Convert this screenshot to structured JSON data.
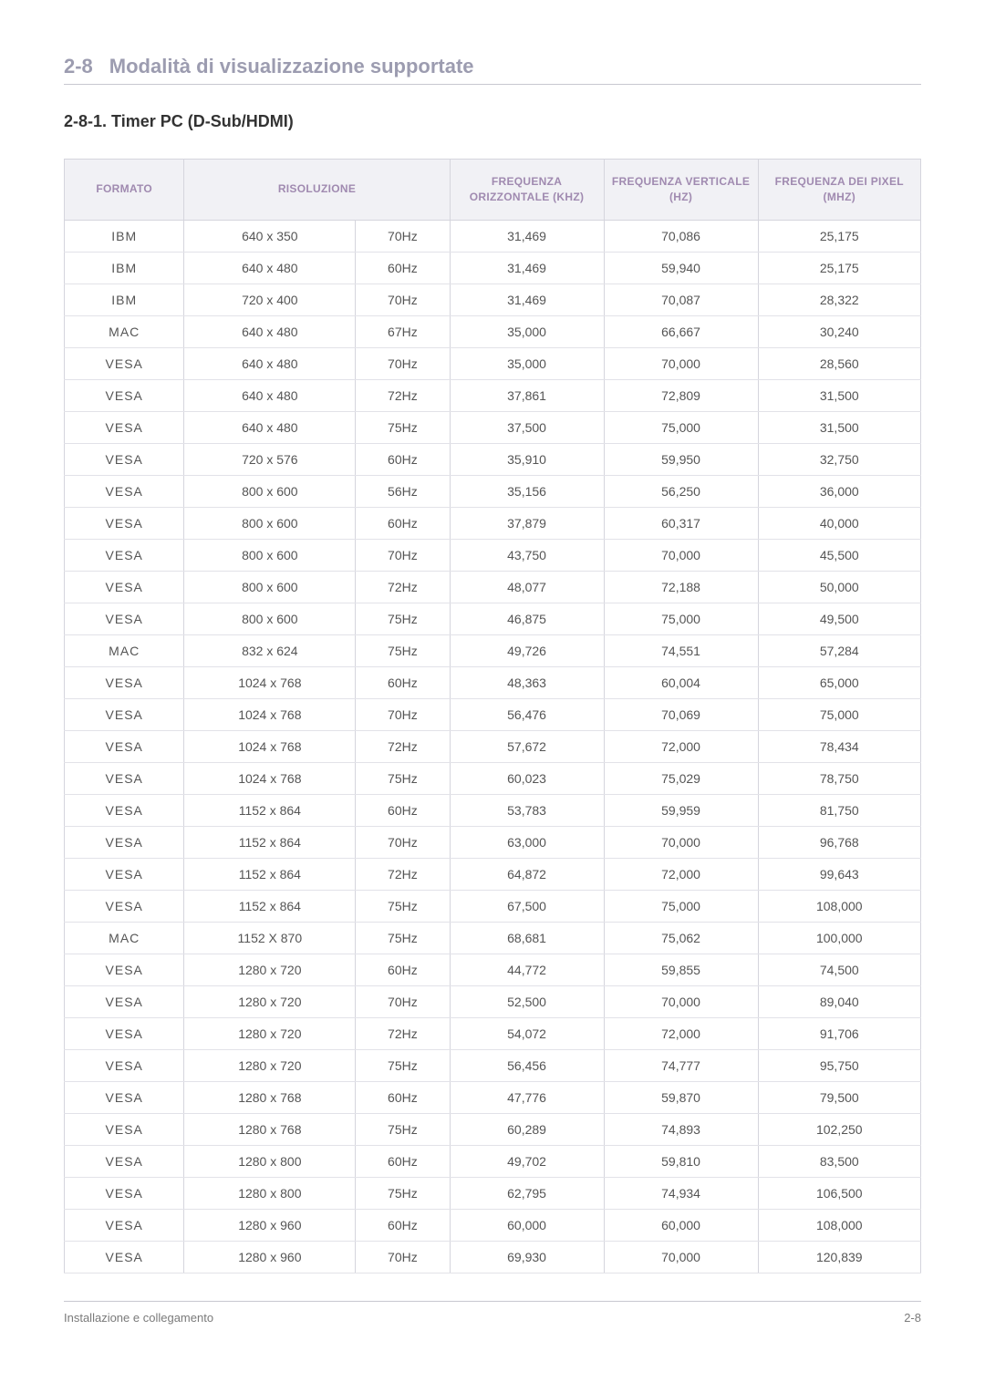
{
  "section": {
    "number": "2-8",
    "title": "Modalità di visualizzazione supportate"
  },
  "subsection": "2-8-1. Timer PC (D-Sub/HDMI)",
  "table": {
    "headers": {
      "formato": "Formato",
      "risoluzione": "Risoluzione",
      "freq_h": "Frequenza Orizzontale (KHz)",
      "freq_v": "Frequenza Verticale (Hz)",
      "freq_p": "Frequenza dei pixel (MHz)"
    },
    "header_color": "#a08ab0",
    "header_bg": "#f1f1f5",
    "border_color": "#d5d5dd",
    "rows": [
      {
        "fmt": "IBM",
        "res": "640 x 350",
        "hz": "70Hz",
        "fh": "31,469",
        "fv": "70,086",
        "fp": "25,175"
      },
      {
        "fmt": "IBM",
        "res": "640 x 480",
        "hz": "60Hz",
        "fh": "31,469",
        "fv": "59,940",
        "fp": "25,175"
      },
      {
        "fmt": "IBM",
        "res": "720 x 400",
        "hz": "70Hz",
        "fh": "31,469",
        "fv": "70,087",
        "fp": "28,322"
      },
      {
        "fmt": "MAC",
        "res": "640 x 480",
        "hz": "67Hz",
        "fh": "35,000",
        "fv": "66,667",
        "fp": "30,240"
      },
      {
        "fmt": "VESA",
        "res": "640 x 480",
        "hz": "70Hz",
        "fh": "35,000",
        "fv": "70,000",
        "fp": "28,560"
      },
      {
        "fmt": "VESA",
        "res": "640 x 480",
        "hz": "72Hz",
        "fh": "37,861",
        "fv": "72,809",
        "fp": "31,500"
      },
      {
        "fmt": "VESA",
        "res": "640 x 480",
        "hz": "75Hz",
        "fh": "37,500",
        "fv": "75,000",
        "fp": "31,500"
      },
      {
        "fmt": "VESA",
        "res": "720 x 576",
        "hz": "60Hz",
        "fh": "35,910",
        "fv": "59,950",
        "fp": "32,750"
      },
      {
        "fmt": "VESA",
        "res": "800 x 600",
        "hz": "56Hz",
        "fh": "35,156",
        "fv": "56,250",
        "fp": "36,000"
      },
      {
        "fmt": "VESA",
        "res": "800 x 600",
        "hz": "60Hz",
        "fh": "37,879",
        "fv": "60,317",
        "fp": "40,000"
      },
      {
        "fmt": "VESA",
        "res": "800 x 600",
        "hz": "70Hz",
        "fh": "43,750",
        "fv": "70,000",
        "fp": "45,500"
      },
      {
        "fmt": "VESA",
        "res": "800 x 600",
        "hz": "72Hz",
        "fh": "48,077",
        "fv": "72,188",
        "fp": "50,000"
      },
      {
        "fmt": "VESA",
        "res": "800 x 600",
        "hz": "75Hz",
        "fh": "46,875",
        "fv": "75,000",
        "fp": "49,500"
      },
      {
        "fmt": "MAC",
        "res": "832 x 624",
        "hz": "75Hz",
        "fh": "49,726",
        "fv": "74,551",
        "fp": "57,284"
      },
      {
        "fmt": "VESA",
        "res": "1024 x 768",
        "hz": "60Hz",
        "fh": "48,363",
        "fv": "60,004",
        "fp": "65,000"
      },
      {
        "fmt": "VESA",
        "res": "1024 x 768",
        "hz": "70Hz",
        "fh": "56,476",
        "fv": "70,069",
        "fp": "75,000"
      },
      {
        "fmt": "VESA",
        "res": "1024 x 768",
        "hz": "72Hz",
        "fh": "57,672",
        "fv": "72,000",
        "fp": "78,434"
      },
      {
        "fmt": "VESA",
        "res": "1024 x 768",
        "hz": "75Hz",
        "fh": "60,023",
        "fv": "75,029",
        "fp": "78,750"
      },
      {
        "fmt": "VESA",
        "res": "1152 x 864",
        "hz": "60Hz",
        "fh": "53,783",
        "fv": "59,959",
        "fp": "81,750"
      },
      {
        "fmt": "VESA",
        "res": "1152 x 864",
        "hz": "70Hz",
        "fh": "63,000",
        "fv": "70,000",
        "fp": "96,768"
      },
      {
        "fmt": "VESA",
        "res": "1152 x 864",
        "hz": "72Hz",
        "fh": "64,872",
        "fv": "72,000",
        "fp": "99,643"
      },
      {
        "fmt": "VESA",
        "res": "1152 x 864",
        "hz": "75Hz",
        "fh": "67,500",
        "fv": "75,000",
        "fp": "108,000"
      },
      {
        "fmt": "MAC",
        "res": "1152 X 870",
        "hz": "75Hz",
        "fh": "68,681",
        "fv": "75,062",
        "fp": "100,000"
      },
      {
        "fmt": "VESA",
        "res": "1280 x 720",
        "hz": "60Hz",
        "fh": "44,772",
        "fv": "59,855",
        "fp": "74,500"
      },
      {
        "fmt": "VESA",
        "res": "1280 x 720",
        "hz": "70Hz",
        "fh": "52,500",
        "fv": "70,000",
        "fp": "89,040"
      },
      {
        "fmt": "VESA",
        "res": "1280 x 720",
        "hz": "72Hz",
        "fh": "54,072",
        "fv": "72,000",
        "fp": "91,706"
      },
      {
        "fmt": "VESA",
        "res": "1280 x 720",
        "hz": "75Hz",
        "fh": "56,456",
        "fv": "74,777",
        "fp": "95,750"
      },
      {
        "fmt": "VESA",
        "res": "1280 x 768",
        "hz": "60Hz",
        "fh": "47,776",
        "fv": "59,870",
        "fp": "79,500"
      },
      {
        "fmt": "VESA",
        "res": "1280 x 768",
        "hz": "75Hz",
        "fh": "60,289",
        "fv": "74,893",
        "fp": "102,250"
      },
      {
        "fmt": "VESA",
        "res": "1280 x 800",
        "hz": "60Hz",
        "fh": "49,702",
        "fv": "59,810",
        "fp": "83,500"
      },
      {
        "fmt": "VESA",
        "res": "1280 x 800",
        "hz": "75Hz",
        "fh": "62,795",
        "fv": "74,934",
        "fp": "106,500"
      },
      {
        "fmt": "VESA",
        "res": "1280 x 960",
        "hz": "60Hz",
        "fh": "60,000",
        "fv": "60,000",
        "fp": "108,000"
      },
      {
        "fmt": "VESA",
        "res": "1280 x 960",
        "hz": "70Hz",
        "fh": "69,930",
        "fv": "70,000",
        "fp": "120,839"
      }
    ],
    "col_widths": [
      "14%",
      "20%",
      "11%",
      "18%",
      "18%",
      "19%"
    ]
  },
  "footer": {
    "left": "Installazione e collegamento",
    "right": "2-8"
  }
}
